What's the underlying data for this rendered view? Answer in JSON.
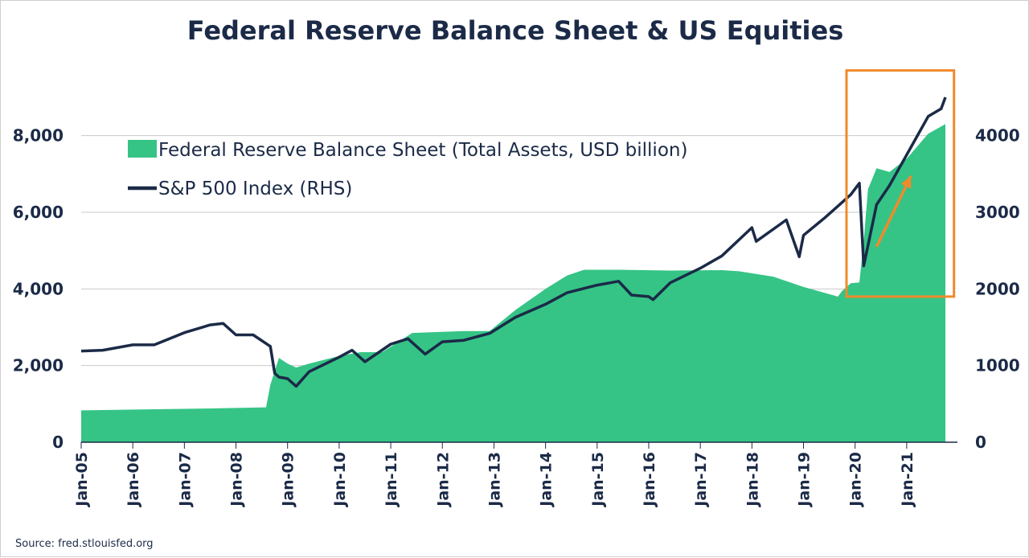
{
  "chart_data": {
    "type": "area",
    "title": "Federal Reserve Balance Sheet & US Equities",
    "source": "Source: fred.stlouisfed.org",
    "x_range": [
      "2005-01",
      "2021-10"
    ],
    "x_tick_labels": [
      "Jan-05",
      "Jan-06",
      "Jan-07",
      "Jan-08",
      "Jan-09",
      "Jan-10",
      "Jan-11",
      "Jan-12",
      "Jan-13",
      "Jan-14",
      "Jan-15",
      "Jan-16",
      "Jan-17",
      "Jan-18",
      "Jan-19",
      "Jan-20",
      "Jan-21"
    ],
    "left_axis": {
      "ylim": [
        0,
        9000
      ],
      "ticks": [
        0,
        2000,
        4000,
        6000,
        8000
      ],
      "tick_labels": [
        "0",
        "2,000",
        "4,000",
        "6,000",
        "8,000"
      ]
    },
    "right_axis": {
      "ylim": [
        0,
        4500
      ],
      "ticks": [
        0,
        1000,
        2000,
        3000,
        4000
      ],
      "tick_labels": [
        "0",
        "1000",
        "2000",
        "3000",
        "4000"
      ]
    },
    "grid": true,
    "legend_position": "top-left",
    "series": [
      {
        "name": "Federal Reserve Balance Sheet (Total Assets, USD billion)",
        "type": "area",
        "axis": "left",
        "color": "#35c486",
        "points": [
          [
            "2005-01",
            830
          ],
          [
            "2006-06",
            860
          ],
          [
            "2007-06",
            880
          ],
          [
            "2008-08",
            910
          ],
          [
            "2008-09",
            1500
          ],
          [
            "2008-11",
            2200
          ],
          [
            "2009-01",
            2050
          ],
          [
            "2009-03",
            1950
          ],
          [
            "2009-06",
            2050
          ],
          [
            "2010-01",
            2250
          ],
          [
            "2010-06",
            2350
          ],
          [
            "2010-11",
            2350
          ],
          [
            "2011-06",
            2850
          ],
          [
            "2012-06",
            2900
          ],
          [
            "2012-12",
            2900
          ],
          [
            "2013-06",
            3450
          ],
          [
            "2014-01",
            4000
          ],
          [
            "2014-06",
            4350
          ],
          [
            "2014-10",
            4500
          ],
          [
            "2015-06",
            4500
          ],
          [
            "2016-06",
            4480
          ],
          [
            "2017-06",
            4490
          ],
          [
            "2017-10",
            4460
          ],
          [
            "2018-06",
            4320
          ],
          [
            "2019-01",
            4050
          ],
          [
            "2019-09",
            3800
          ],
          [
            "2019-10",
            3950
          ],
          [
            "2019-12",
            4150
          ],
          [
            "2020-02",
            4170
          ],
          [
            "2020-03",
            5250
          ],
          [
            "2020-04",
            6600
          ],
          [
            "2020-06",
            7150
          ],
          [
            "2020-09",
            7050
          ],
          [
            "2021-01",
            7400
          ],
          [
            "2021-06",
            8050
          ],
          [
            "2021-10",
            8300
          ]
        ]
      },
      {
        "name": "S&P 500 Index (RHS)",
        "type": "line",
        "axis": "right",
        "color": "#1b2a47",
        "points": [
          [
            "2005-01",
            1190
          ],
          [
            "2005-06",
            1200
          ],
          [
            "2006-01",
            1270
          ],
          [
            "2006-06",
            1270
          ],
          [
            "2007-01",
            1430
          ],
          [
            "2007-07",
            1530
          ],
          [
            "2007-10",
            1550
          ],
          [
            "2008-01",
            1400
          ],
          [
            "2008-05",
            1400
          ],
          [
            "2008-09",
            1250
          ],
          [
            "2008-10",
            900
          ],
          [
            "2008-11",
            850
          ],
          [
            "2009-01",
            830
          ],
          [
            "2009-03",
            730
          ],
          [
            "2009-06",
            920
          ],
          [
            "2010-01",
            1110
          ],
          [
            "2010-04",
            1200
          ],
          [
            "2010-07",
            1050
          ],
          [
            "2011-01",
            1280
          ],
          [
            "2011-05",
            1350
          ],
          [
            "2011-09",
            1150
          ],
          [
            "2012-01",
            1310
          ],
          [
            "2012-06",
            1330
          ],
          [
            "2012-12",
            1420
          ],
          [
            "2013-06",
            1630
          ],
          [
            "2014-01",
            1800
          ],
          [
            "2014-06",
            1950
          ],
          [
            "2015-01",
            2050
          ],
          [
            "2015-06",
            2100
          ],
          [
            "2015-09",
            1920
          ],
          [
            "2016-01",
            1900
          ],
          [
            "2016-02",
            1860
          ],
          [
            "2016-06",
            2080
          ],
          [
            "2017-01",
            2270
          ],
          [
            "2017-06",
            2430
          ],
          [
            "2018-01",
            2800
          ],
          [
            "2018-02",
            2620
          ],
          [
            "2018-09",
            2900
          ],
          [
            "2018-12",
            2420
          ],
          [
            "2019-01",
            2700
          ],
          [
            "2019-06",
            2930
          ],
          [
            "2019-12",
            3230
          ],
          [
            "2020-02",
            3380
          ],
          [
            "2020-03",
            2300
          ],
          [
            "2020-06",
            3100
          ],
          [
            "2020-09",
            3350
          ],
          [
            "2021-01",
            3750
          ],
          [
            "2021-06",
            4250
          ],
          [
            "2021-09",
            4350
          ],
          [
            "2021-10",
            4500
          ]
        ]
      }
    ],
    "annotations": [
      {
        "type": "box",
        "color": "#f08a2b",
        "x_range": [
          "2019-11",
          "2021-12"
        ],
        "y_range_left": [
          3800,
          9700
        ]
      },
      {
        "type": "arrow",
        "color": "#f08a2b",
        "from": [
          "2020-06",
          5100
        ],
        "to": [
          "2021-02",
          6950
        ]
      }
    ]
  }
}
